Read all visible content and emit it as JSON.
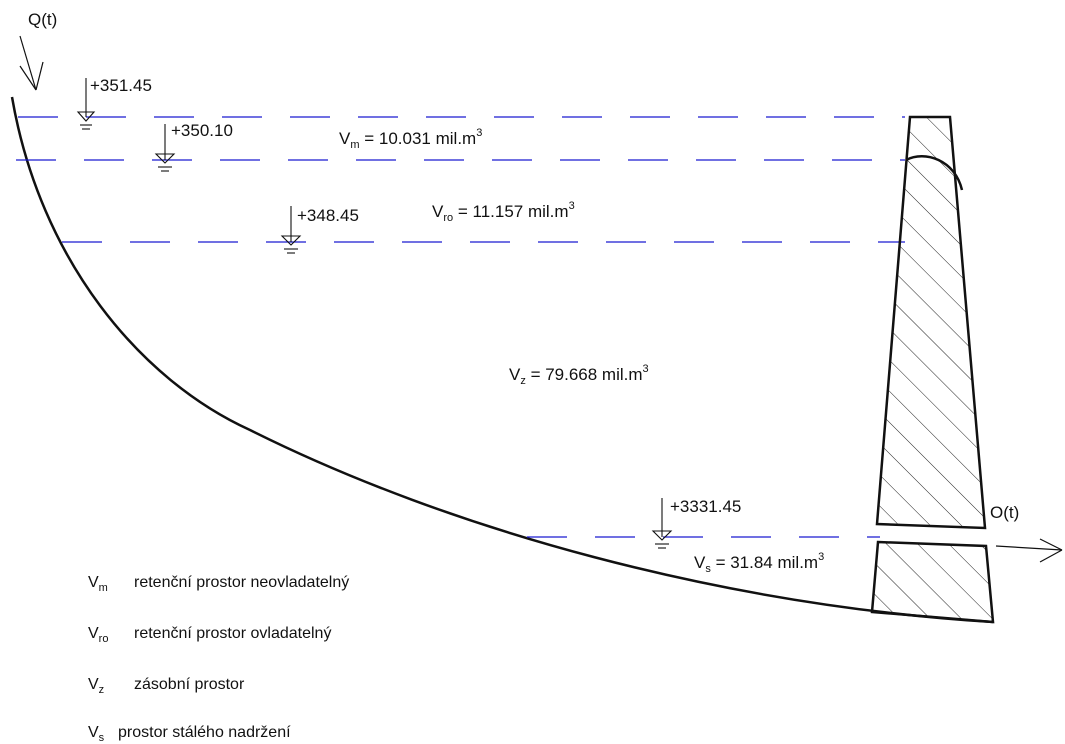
{
  "inflow_label": "Q(t)",
  "outflow_label": "O(t)",
  "levels": [
    {
      "elevation": "+351.45"
    },
    {
      "elevation": "+350.10"
    },
    {
      "elevation": "+348.45"
    },
    {
      "elevation": "+3331.45"
    }
  ],
  "volumes": {
    "vm": {
      "symbol": "V",
      "sub": "m",
      "eq": " = 10.031 mil.m",
      "sup": "3"
    },
    "vro": {
      "symbol": "V",
      "sub": "ro",
      "eq": " = 11.157 mil.m",
      "sup": "3"
    },
    "vz": {
      "symbol": "V",
      "sub": "z",
      "eq": " = 79.668 mil.m",
      "sup": "3"
    },
    "vs": {
      "symbol": "V",
      "sub": "s",
      "eq": " = 31.84 mil.m",
      "sup": "3"
    }
  },
  "legend": [
    {
      "symbol": "V",
      "sub": "m",
      "text": "retenční prostor neovladatelný"
    },
    {
      "symbol": "V",
      "sub": "ro",
      "text": "retenční prostor ovladatelný"
    },
    {
      "symbol": "V",
      "sub": "z",
      "text": "zásobní prostor"
    },
    {
      "symbol": "V",
      "sub": "s",
      "text": "prostor stálého nadržení"
    }
  ],
  "colors": {
    "water_lines": "#1a1ad0",
    "lines": "#111111"
  }
}
